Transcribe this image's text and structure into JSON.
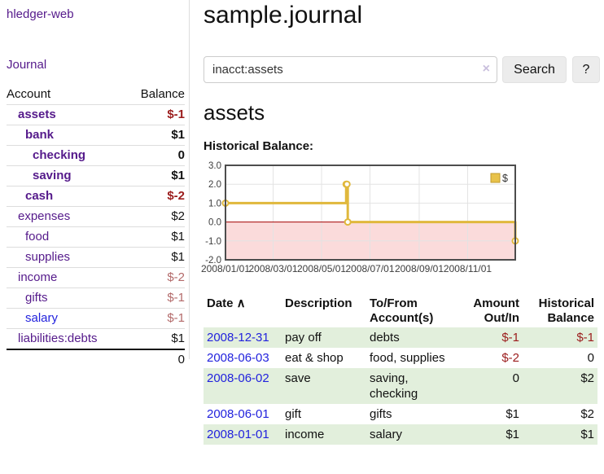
{
  "sidebar": {
    "app_title": "hledger-web",
    "journal_label": "Journal",
    "accounts_table": {
      "col_account": "Account",
      "col_balance": "Balance",
      "rows": [
        {
          "account": "assets",
          "balance": "$-1",
          "indent": 1,
          "bold": true,
          "neg": "strong",
          "unvisited": false
        },
        {
          "account": "bank",
          "balance": "$1",
          "indent": 2,
          "bold": true,
          "neg": "none",
          "unvisited": false
        },
        {
          "account": "checking",
          "balance": "0",
          "indent": 3,
          "bold": true,
          "neg": "none",
          "unvisited": false
        },
        {
          "account": "saving",
          "balance": "$1",
          "indent": 3,
          "bold": true,
          "neg": "none",
          "unvisited": false
        },
        {
          "account": "cash",
          "balance": "$-2",
          "indent": 2,
          "bold": true,
          "neg": "strong",
          "unvisited": false
        },
        {
          "account": "expenses",
          "balance": "$2",
          "indent": 1,
          "bold": false,
          "neg": "none",
          "unvisited": false
        },
        {
          "account": "food",
          "balance": "$1",
          "indent": 2,
          "bold": false,
          "neg": "none",
          "unvisited": false
        },
        {
          "account": "supplies",
          "balance": "$1",
          "indent": 2,
          "bold": false,
          "neg": "none",
          "unvisited": false
        },
        {
          "account": "income",
          "balance": "$-2",
          "indent": 1,
          "bold": false,
          "neg": "soft",
          "unvisited": false
        },
        {
          "account": "gifts",
          "balance": "$-1",
          "indent": 2,
          "bold": false,
          "neg": "soft",
          "unvisited": false
        },
        {
          "account": "salary",
          "balance": "$-1",
          "indent": 2,
          "bold": false,
          "neg": "soft",
          "unvisited": true
        },
        {
          "account": "liabilities:debts",
          "balance": "$1",
          "indent": 1,
          "bold": false,
          "neg": "none",
          "unvisited": false
        }
      ],
      "total": "0"
    }
  },
  "main": {
    "title": "sample.journal",
    "search": {
      "query": "inacct:assets",
      "clear_icon": "×",
      "button_label": "Search",
      "help_label": "?"
    },
    "account_heading": "assets",
    "chart_title": "Historical Balance:"
  },
  "chart_data": {
    "type": "line",
    "step": true,
    "title": "Historical Balance",
    "x_range": [
      "2008-01-01",
      "2008-12-31"
    ],
    "ylim": [
      -2,
      3
    ],
    "y_ticks": [
      "3.0",
      "2.0",
      "1.0",
      "0.0",
      "-1.0",
      "-2.0"
    ],
    "y_tick_values": [
      3,
      2,
      1,
      0,
      -1,
      -2
    ],
    "x_ticks": [
      {
        "date": "2008-01-01",
        "label": "2008/01/01"
      },
      {
        "date": "2008-03-01",
        "label": "2008/03/01"
      },
      {
        "date": "2008-05-01",
        "label": "2008/05/01"
      },
      {
        "date": "2008-07-01",
        "label": "2008/07/01"
      },
      {
        "date": "2008-09-01",
        "label": "2008/09/01"
      },
      {
        "date": "2008-11-01",
        "label": "2008/11/01"
      }
    ],
    "series": [
      {
        "name": "$",
        "color": "#e0b83c",
        "points": [
          [
            "2008-01-01",
            1
          ],
          [
            "2008-06-01",
            2
          ],
          [
            "2008-06-02",
            2
          ],
          [
            "2008-06-03",
            0
          ],
          [
            "2008-12-31",
            -1
          ]
        ]
      }
    ],
    "legend": [
      {
        "label": "$",
        "color": "#e8c24a",
        "border": "#c19b2e"
      }
    ],
    "grid": true,
    "legend_position": "top-right",
    "negative_region_color": "#fbdbdb",
    "zero_line_color": "#a40000",
    "grid_color": "#e3e3e3",
    "plot_border_color": "#4d4d4d",
    "tick_text_color": "#3d3d3d"
  },
  "register": {
    "columns": [
      {
        "line1": "Date",
        "line2": "",
        "sort": "∧",
        "align": "left"
      },
      {
        "line1": "Description",
        "line2": "",
        "sort": "",
        "align": "left"
      },
      {
        "line1": "To/From",
        "line2": "Account(s)",
        "sort": "",
        "align": "left"
      },
      {
        "line1": "Amount",
        "line2": "Out/In",
        "sort": "",
        "align": "right"
      },
      {
        "line1": "Historical",
        "line2": "Balance",
        "sort": "",
        "align": "right"
      }
    ],
    "rows": [
      {
        "date": "2008-12-31",
        "description": "pay off",
        "accounts": "debts",
        "amount": "$-1",
        "balance": "$-1",
        "amount_negative": true,
        "balance_negative": true
      },
      {
        "date": "2008-06-03",
        "description": "eat & shop",
        "accounts": "food, supplies",
        "amount": "$-2",
        "balance": "0",
        "amount_negative": true,
        "balance_negative": false
      },
      {
        "date": "2008-06-02",
        "description": "save",
        "accounts": "saving, checking",
        "amount": "0",
        "balance": "$2",
        "amount_negative": false,
        "balance_negative": false
      },
      {
        "date": "2008-06-01",
        "description": "gift",
        "accounts": "gifts",
        "amount": "$1",
        "balance": "$2",
        "amount_negative": false,
        "balance_negative": false
      },
      {
        "date": "2008-01-01",
        "description": "income",
        "accounts": "salary",
        "amount": "$1",
        "balance": "$1",
        "amount_negative": false,
        "balance_negative": false
      }
    ]
  },
  "colors": {
    "accent_purple": "#551a8b",
    "link_blue": "#2222dd",
    "negative_strong": "#9b1c1c",
    "negative_soft": "#b36a6a",
    "row_green": "#e2efdc",
    "chart_gold": "#e0b83c"
  }
}
